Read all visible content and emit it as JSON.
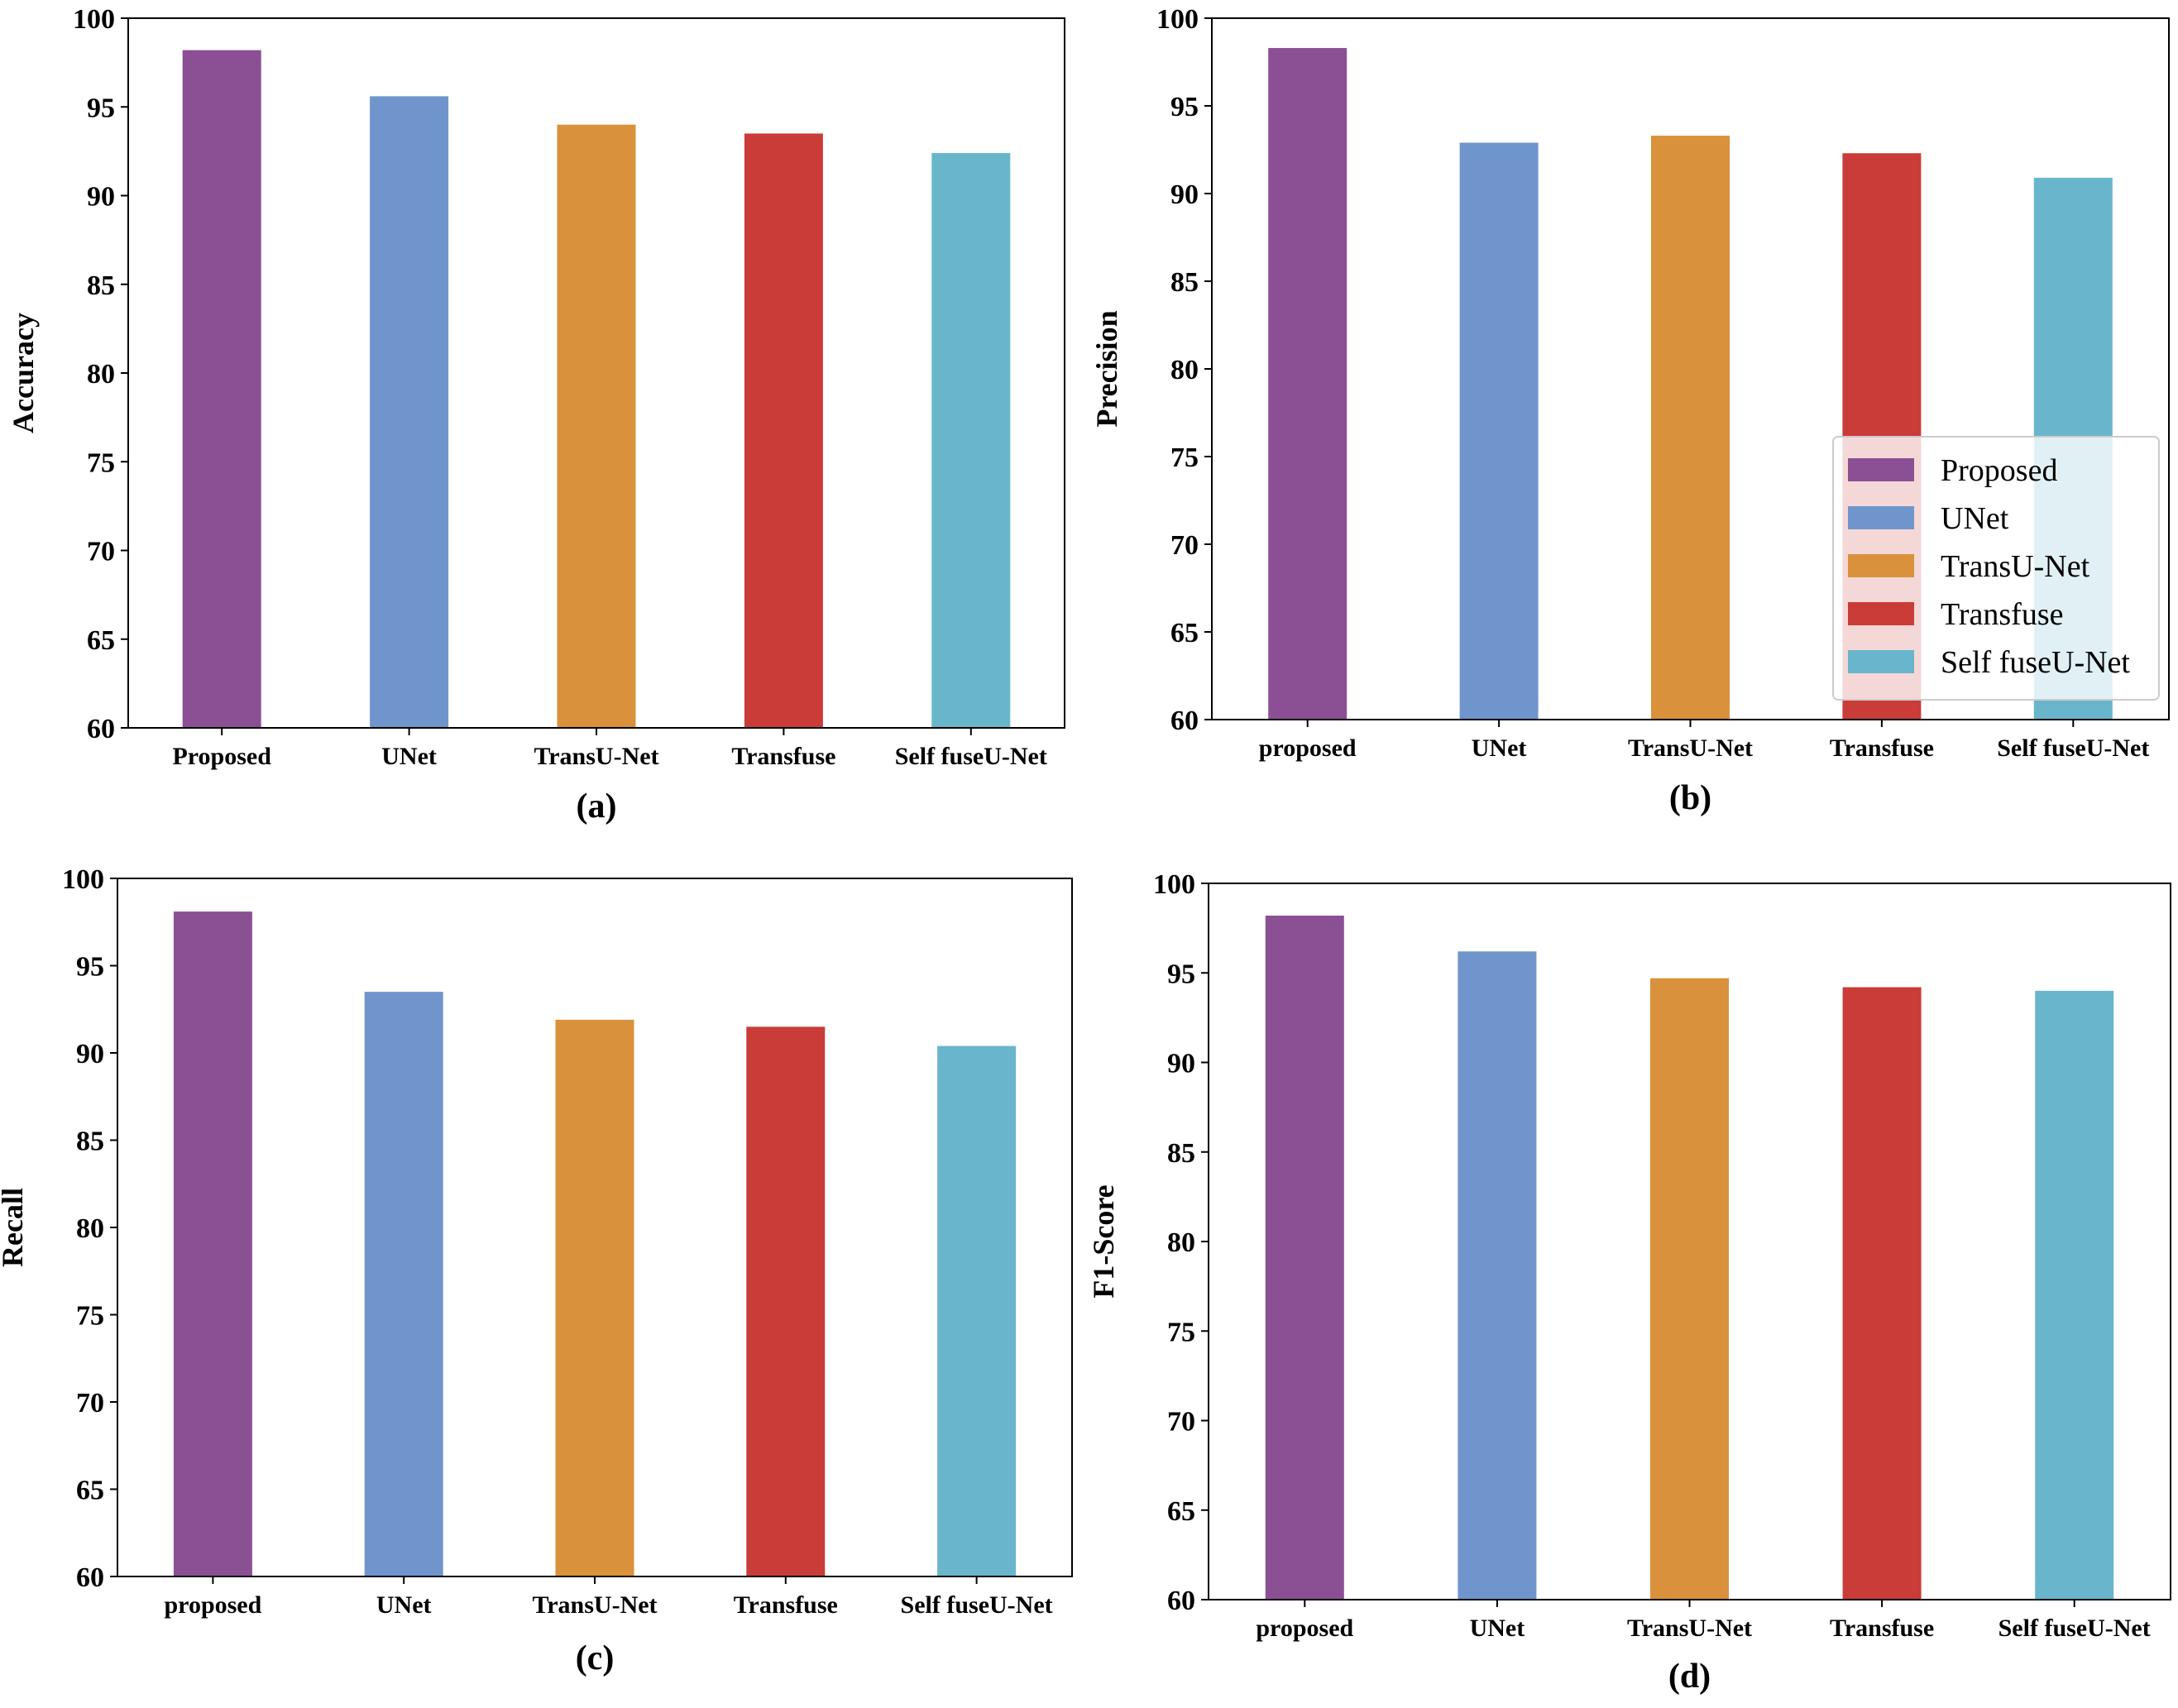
{
  "colors": {
    "purple": "#8B5094",
    "blue": "#6F95CC",
    "orange": "#DA913B",
    "red": "#C93C38",
    "cyan": "#69B6CC"
  },
  "chart_data": [
    {
      "type": "bar",
      "caption": "(a)",
      "ylabel": "Accuracy",
      "xlabel": "",
      "categories": [
        "Proposed",
        "UNet",
        "TransU-Net",
        "Transfuse",
        "Self fuseU-Net"
      ],
      "values": [
        98.2,
        95.6,
        94.0,
        93.5,
        92.4
      ],
      "ylim": [
        60,
        100
      ],
      "yticks": [
        60,
        65,
        70,
        75,
        80,
        85,
        90,
        95,
        100
      ],
      "bar_colors": [
        "#8B5094",
        "#6F95CC",
        "#DA913B",
        "#C93C38",
        "#69B6CC"
      ],
      "grid": false,
      "legend": null
    },
    {
      "type": "bar",
      "caption": "(b)",
      "ylabel": "Precision",
      "xlabel": "",
      "categories": [
        "proposed",
        "UNet",
        "TransU-Net",
        "Transfuse",
        "Self fuseU-Net"
      ],
      "values": [
        98.3,
        92.9,
        93.3,
        92.3,
        90.9
      ],
      "ylim": [
        60,
        100
      ],
      "yticks": [
        60,
        65,
        70,
        75,
        80,
        85,
        90,
        95,
        100
      ],
      "bar_colors": [
        "#8B5094",
        "#6F95CC",
        "#DA913B",
        "#C93C38",
        "#69B6CC"
      ],
      "grid": false,
      "legend": {
        "placement": "lower-right",
        "entries": [
          "Proposed",
          "UNet",
          "TransU-Net",
          "Transfuse",
          "Self fuseU-Net"
        ]
      }
    },
    {
      "type": "bar",
      "caption": "(c)",
      "ylabel": "Recall",
      "xlabel": "",
      "categories": [
        "proposed",
        "UNet",
        "TransU-Net",
        "Transfuse",
        "Self fuseU-Net"
      ],
      "values": [
        98.1,
        93.5,
        91.9,
        91.5,
        90.4
      ],
      "ylim": [
        60,
        100
      ],
      "yticks": [
        60,
        65,
        70,
        75,
        80,
        85,
        90,
        95,
        100
      ],
      "bar_colors": [
        "#8B5094",
        "#6F95CC",
        "#DA913B",
        "#C93C38",
        "#69B6CC"
      ],
      "grid": false,
      "legend": null
    },
    {
      "type": "bar",
      "caption": "(d)",
      "ylabel": "F1-Score",
      "xlabel": "",
      "categories": [
        "proposed",
        "UNet",
        "TransU-Net",
        "Transfuse",
        "Self fuseU-Net"
      ],
      "values": [
        98.2,
        96.2,
        94.7,
        94.2,
        94.0
      ],
      "ylim": [
        60,
        100
      ],
      "yticks": [
        60,
        65,
        70,
        75,
        80,
        85,
        90,
        95,
        100
      ],
      "bar_colors": [
        "#8B5094",
        "#6F95CC",
        "#DA913B",
        "#C93C38",
        "#69B6CC"
      ],
      "grid": false,
      "legend": null
    }
  ]
}
